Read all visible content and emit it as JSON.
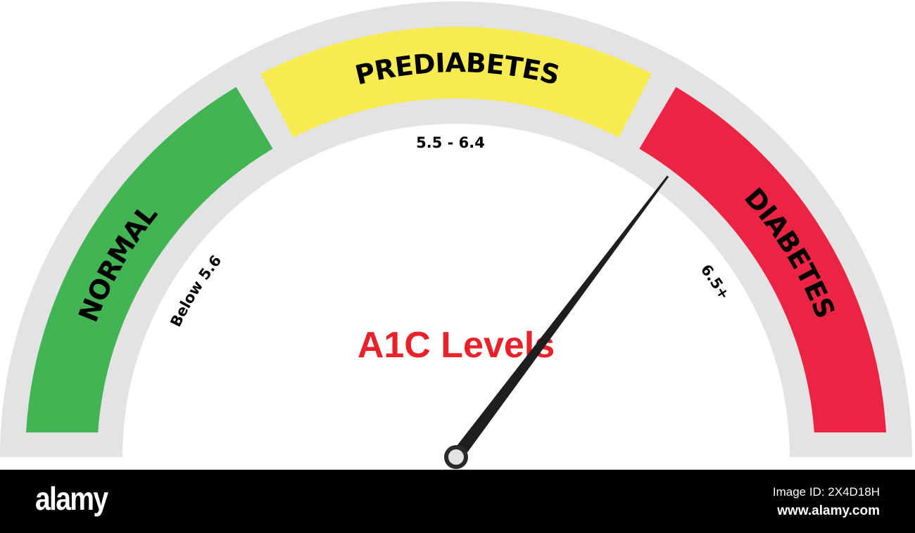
{
  "gauge": {
    "title": "A1C Levels",
    "title_color": "#e8212a",
    "needle_angle_deg": 53,
    "segments": [
      {
        "label": "NORMAL",
        "range": "Below 5.6",
        "color": "#43b453"
      },
      {
        "label": "PREDIABETES",
        "range": "5.5 - 6.4",
        "color": "#f6ec52"
      },
      {
        "label": "DIABETES",
        "range": "6.5+",
        "color": "#ec2443"
      }
    ],
    "track_color": "#e3e3e3"
  },
  "footer": {
    "logo": "alamy",
    "image_id": "Image ID: 2X4D18H",
    "url": "www.alamy.com"
  }
}
